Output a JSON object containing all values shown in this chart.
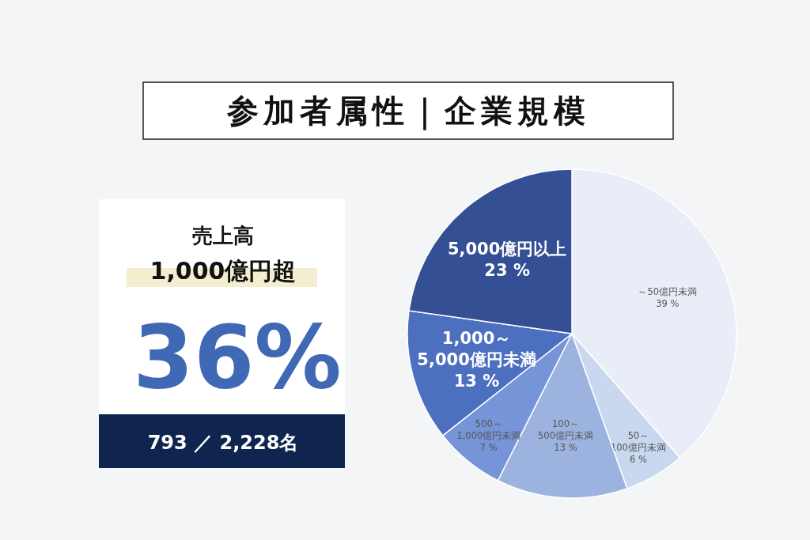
{
  "chart_data": [
    {
      "type": "pie",
      "title": "参加者属性｜企業規模",
      "categories": [
        "～50億円未満",
        "50～100億円未満",
        "100～500億円未満",
        "500～1,000億円未満",
        "1,000～5,000億円未満",
        "5,000億円以上"
      ],
      "values": [
        39,
        6,
        13,
        7,
        13,
        23
      ],
      "value_labels": [
        "39 %",
        "6 %",
        "13 %",
        "7 %",
        "13 %",
        "23 %"
      ],
      "colors": [
        "#e8edf7",
        "#c9d8ee",
        "#9cb3e0",
        "#7595d8",
        "#4c6fbf",
        "#344f94"
      ]
    },
    {
      "type": "other",
      "title": "売上高",
      "subtitle": "1,000億円超",
      "annotations": [
        "36%",
        "793 ／ 2,228名"
      ]
    }
  ]
}
